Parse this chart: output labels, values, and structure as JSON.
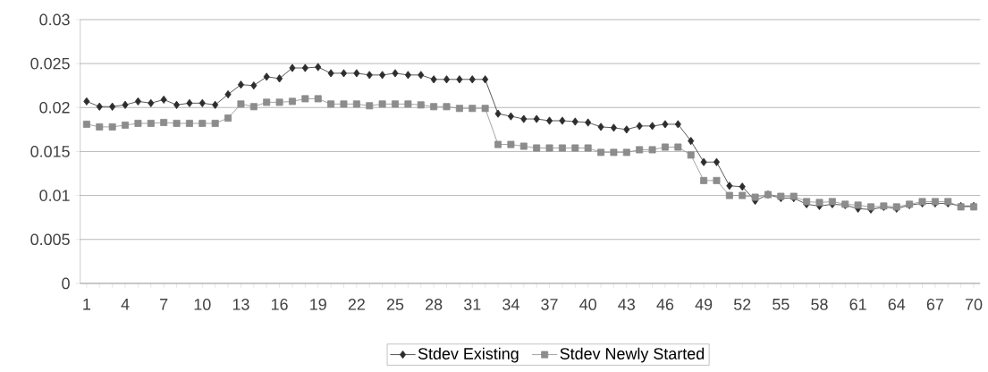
{
  "chart_data": {
    "type": "line",
    "categories": [
      "1",
      null,
      null,
      "4",
      null,
      null,
      "7",
      null,
      null,
      "10",
      null,
      null,
      "13",
      null,
      null,
      "16",
      null,
      null,
      "19",
      null,
      null,
      "22",
      null,
      null,
      "25",
      null,
      null,
      "28",
      null,
      null,
      "31",
      null,
      null,
      "34",
      null,
      null,
      "37",
      null,
      null,
      "40",
      null,
      null,
      "43",
      null,
      null,
      "46",
      null,
      null,
      "49",
      null,
      null,
      "52",
      null,
      null,
      "55",
      null,
      null,
      "58",
      null,
      null,
      "61",
      null,
      null,
      "64",
      null,
      null,
      "67",
      null,
      null,
      "70"
    ],
    "series": [
      {
        "name": "Stdev Existing",
        "color": "#2b2f2b",
        "marker": "diamond",
        "values": [
          0.0207,
          0.0201,
          0.0201,
          0.0203,
          0.0207,
          0.0205,
          0.0209,
          0.0203,
          0.0205,
          0.0205,
          0.0203,
          0.0215,
          0.0226,
          0.0225,
          0.0235,
          0.0233,
          0.0245,
          0.0245,
          0.0246,
          0.0239,
          0.0239,
          0.0239,
          0.0237,
          0.0237,
          0.0239,
          0.0237,
          0.0237,
          0.0232,
          0.0232,
          0.0232,
          0.0232,
          0.0232,
          0.0193,
          0.019,
          0.0187,
          0.0187,
          0.0185,
          0.0185,
          0.0184,
          0.0183,
          0.0178,
          0.0177,
          0.0175,
          0.0179,
          0.0179,
          0.0181,
          0.0181,
          0.0162,
          0.0138,
          0.0138,
          0.0111,
          0.011,
          0.0094,
          0.0101,
          0.0097,
          0.0097,
          0.009,
          0.0088,
          0.009,
          0.0089,
          0.0085,
          0.0084,
          0.0087,
          0.0085,
          0.0089,
          0.0091,
          0.0091,
          0.0091,
          0.0088,
          0.0088
        ]
      },
      {
        "name": "Stdev Newly Started",
        "color": "#8c8c8c",
        "marker": "square",
        "values": [
          0.0181,
          0.0178,
          0.0178,
          0.018,
          0.0182,
          0.0182,
          0.0183,
          0.0182,
          0.0182,
          0.0182,
          0.0182,
          0.0188,
          0.0204,
          0.0201,
          0.0206,
          0.0206,
          0.0207,
          0.021,
          0.021,
          0.0204,
          0.0204,
          0.0204,
          0.0202,
          0.0204,
          0.0204,
          0.0204,
          0.0203,
          0.0201,
          0.0201,
          0.0199,
          0.0199,
          0.0199,
          0.0158,
          0.0158,
          0.0156,
          0.0154,
          0.0154,
          0.0154,
          0.0154,
          0.0154,
          0.0149,
          0.0149,
          0.0149,
          0.0152,
          0.0152,
          0.0155,
          0.0155,
          0.0146,
          0.0117,
          0.0117,
          0.01,
          0.01,
          0.0098,
          0.0101,
          0.0099,
          0.0099,
          0.0093,
          0.0092,
          0.0093,
          0.009,
          0.0089,
          0.0087,
          0.0088,
          0.0087,
          0.009,
          0.0093,
          0.0093,
          0.0093,
          0.0087,
          0.0087
        ]
      }
    ],
    "ylim": [
      0,
      0.03
    ],
    "yticks": [
      0,
      0.005,
      0.01,
      0.015,
      0.02,
      0.025,
      0.03
    ],
    "grid": "y",
    "legend": "bottom",
    "line_style": "solid"
  }
}
